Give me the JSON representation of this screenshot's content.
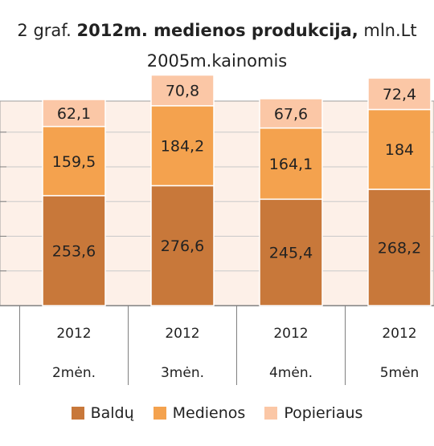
{
  "title": {
    "prefix": "2 graf. ",
    "bold": "2012m. medienos produkcija,",
    "suffix": " mln.Lt"
  },
  "subtitle": "2005m.kainomis",
  "colors": {
    "baldu": "#c8783a",
    "medienos": "#f4a24e",
    "popieriaus": "#fbc7a6",
    "plot_bg": "#fdf0e8",
    "grid": "#c9c9c9"
  },
  "chart_data": {
    "type": "bar",
    "stacked": true,
    "categories": [
      {
        "year": "2012",
        "month": "2mėn."
      },
      {
        "year": "2012",
        "month": "3mėn."
      },
      {
        "year": "2012",
        "month": "4mėn."
      },
      {
        "year": "2012",
        "month": "5mėn"
      }
    ],
    "series": [
      {
        "name": "Baldų",
        "values": [
          253.6,
          276.6,
          245.4,
          268.2
        ]
      },
      {
        "name": "Medienos",
        "values": [
          159.5,
          184.2,
          164.1,
          184
        ]
      },
      {
        "name": "Popieriaus",
        "values": [
          62.1,
          70.8,
          67.6,
          72.4
        ]
      }
    ],
    "grid": true,
    "legend": "bottom"
  }
}
